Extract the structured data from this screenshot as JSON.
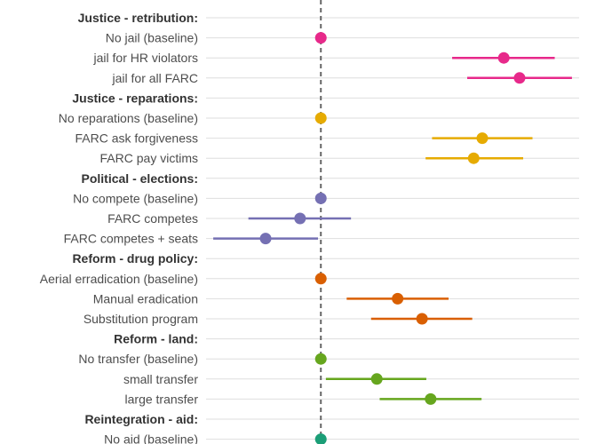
{
  "chart_data": {
    "type": "scatter",
    "style": "coefficient-plot",
    "reference_line": 0,
    "grid": true,
    "legend": "none",
    "xlim": [
      -0.16,
      0.36
    ],
    "rows": [
      {
        "label": "Justice - retribution:",
        "header": true
      },
      {
        "label": "No jail (baseline)",
        "value": 0,
        "lo": 0,
        "hi": 0,
        "color": "#e7298a"
      },
      {
        "label": "jail for HR violators",
        "value": 0.255,
        "lo": 0.183,
        "hi": 0.326,
        "color": "#e7298a"
      },
      {
        "label": "jail for all FARC",
        "value": 0.277,
        "lo": 0.204,
        "hi": 0.35,
        "color": "#e7298a"
      },
      {
        "label": "Justice - reparations:",
        "header": true
      },
      {
        "label": "No reparations (baseline)",
        "value": 0,
        "lo": 0,
        "hi": 0,
        "color": "#e6ab02"
      },
      {
        "label": "FARC ask forgiveness",
        "value": 0.225,
        "lo": 0.155,
        "hi": 0.295,
        "color": "#e6ab02"
      },
      {
        "label": "FARC pay victims",
        "value": 0.213,
        "lo": 0.146,
        "hi": 0.282,
        "color": "#e6ab02"
      },
      {
        "label": "Political - elections:",
        "header": true
      },
      {
        "label": "No compete (baseline)",
        "value": 0,
        "lo": 0,
        "hi": 0,
        "color": "#7570b3"
      },
      {
        "label": "FARC competes",
        "value": -0.029,
        "lo": -0.101,
        "hi": 0.042,
        "color": "#7570b3"
      },
      {
        "label": "FARC competes + seats",
        "value": -0.077,
        "lo": -0.15,
        "hi": -0.004,
        "color": "#7570b3"
      },
      {
        "label": "Reform - drug policy:",
        "header": true
      },
      {
        "label": "Aerial erradication (baseline)",
        "value": 0,
        "lo": 0,
        "hi": 0,
        "color": "#d95f02"
      },
      {
        "label": "Manual eradication",
        "value": 0.107,
        "lo": 0.036,
        "hi": 0.178,
        "color": "#d95f02"
      },
      {
        "label": "Substitution program",
        "value": 0.141,
        "lo": 0.07,
        "hi": 0.211,
        "color": "#d95f02"
      },
      {
        "label": "Reform - land:",
        "header": true
      },
      {
        "label": "No transfer (baseline)",
        "value": 0,
        "lo": 0,
        "hi": 0,
        "color": "#66a61e"
      },
      {
        "label": "small transfer",
        "value": 0.078,
        "lo": 0.007,
        "hi": 0.147,
        "color": "#66a61e"
      },
      {
        "label": "large transfer",
        "value": 0.153,
        "lo": 0.082,
        "hi": 0.224,
        "color": "#66a61e"
      },
      {
        "label": "Reintegration - aid:",
        "header": true
      },
      {
        "label": "No aid (baseline)",
        "value": 0,
        "lo": 0,
        "hi": 0,
        "color": "#1b9e77"
      }
    ]
  }
}
